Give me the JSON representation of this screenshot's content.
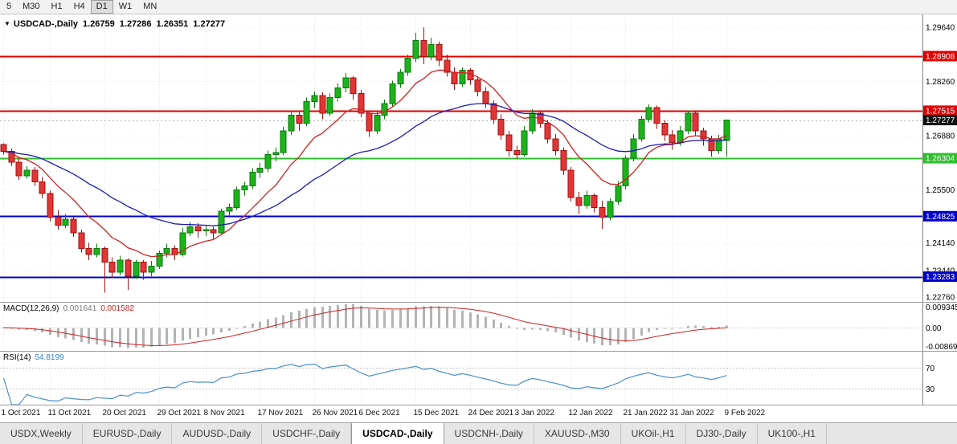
{
  "toolbar": {
    "timeframes": [
      "5",
      "M30",
      "H1",
      "H4",
      "D1",
      "W1",
      "MN"
    ],
    "active": "D1"
  },
  "chart_header": {
    "symbol_label": "USDCAD-,Daily",
    "open": "1.26759",
    "high": "1.27286",
    "low": "1.26351",
    "close": "1.27277"
  },
  "macd": {
    "label": "MACD(12,26,9)",
    "value_main": "0.001641",
    "value_signal": "0.001582",
    "axis": [
      "0.009345",
      "0.00",
      "-0.008690"
    ]
  },
  "rsi": {
    "label": "RSI(14)",
    "value": "54.8199",
    "axis": [
      "70",
      "30"
    ]
  },
  "price_axis": {
    "ticks": [
      {
        "label": "1.29640",
        "price": 1.2964
      },
      {
        "label": "1.28260",
        "price": 1.2826
      },
      {
        "label": "1.26880",
        "price": 1.2688
      },
      {
        "label": "1.25500",
        "price": 1.255
      },
      {
        "label": "1.24140",
        "price": 1.2414
      },
      {
        "label": "1.23440",
        "price": 1.2344
      },
      {
        "label": "1.22760",
        "price": 1.2276
      }
    ],
    "badges": [
      {
        "label": "1.28908",
        "price": 1.28908,
        "color": "#e00000"
      },
      {
        "label": "1.27515",
        "price": 1.27515,
        "color": "#e00000"
      },
      {
        "label": "1.27277",
        "price": 1.27277,
        "color": "#111111"
      },
      {
        "label": "1.26304",
        "price": 1.26304,
        "color": "#2fbe2f"
      },
      {
        "label": "1.24825",
        "price": 1.24825,
        "color": "#0000cc"
      },
      {
        "label": "1.23283",
        "price": 1.23283,
        "color": "#0000cc"
      }
    ]
  },
  "tabs": {
    "items": [
      "USDX,Weekly",
      "EURUSD-,Daily",
      "AUDUSD-,Daily",
      "USDCHF-,Daily",
      "USDCAD-,Daily",
      "USDCNH-,Daily",
      "XAUUSD-,M30",
      "UKOil-,H1",
      "DJ30-,Daily",
      "UK100-,H1"
    ],
    "active": "USDCAD-,Daily"
  },
  "colors": {
    "bull": "#1cb21c",
    "bull_border": "#0b7a0b",
    "bear": "#e23535",
    "bear_border": "#9c1212",
    "ma_fast": "#cc2222",
    "ma_slow": "#1c1cb0",
    "macd_hist": "#b4b4b4",
    "macd_signal": "#cc2222",
    "rsi_line": "#4a90c8",
    "grid": "#e3e3e3",
    "grid_h": "#f0f0f0",
    "level_dotted": "#c4c4c4",
    "bid_line": "#b0b0b0",
    "axis_border": "#808080"
  },
  "chart_data": {
    "type": "candlestick",
    "symbol": "USDCAD-",
    "timeframe": "Daily",
    "price_range": [
      1.2264,
      1.2997
    ],
    "current_price": 1.27277,
    "price_grid": [
      1.2964,
      1.28952,
      1.28264,
      1.27576,
      1.26888,
      1.262,
      1.25512,
      1.24824,
      1.24136,
      1.23448,
      1.2276
    ],
    "levels": [
      {
        "price": 1.28908,
        "color": "#e00000"
      },
      {
        "price": 1.27515,
        "color": "#e00000"
      },
      {
        "price": 1.26304,
        "color": "#2fbe2f"
      },
      {
        "price": 1.24825,
        "color": "#0000cc"
      },
      {
        "price": 1.23283,
        "color": "#0000cc"
      }
    ],
    "ma": [
      {
        "period": 10,
        "color_key": "ma_fast"
      },
      {
        "period": 30,
        "color_key": "ma_slow"
      }
    ],
    "macd": {
      "fast": 12,
      "slow": 26,
      "signal": 9,
      "range": [
        -0.00869,
        0.009345
      ]
    },
    "rsi": {
      "period": 14,
      "levels": [
        70,
        30
      ],
      "range": [
        0,
        100
      ]
    },
    "date_ticks": {
      "indices": [
        0,
        6,
        13,
        20,
        26,
        33,
        40,
        46,
        53,
        60,
        66,
        73,
        80,
        86,
        93
      ],
      "labels": [
        "1 Oct 2021",
        "11 Oct 2021",
        "20 Oct 2021",
        "29 Oct 2021",
        "8 Nov 2021",
        "17 Nov 2021",
        "26 Nov 2021",
        "6 Dec 2021",
        "15 Dec 2021",
        "24 Dec 2021",
        "3 Jan 2022",
        "12 Jan 2022",
        "21 Jan 2022",
        "31 Jan 2022",
        "9 Feb 2022"
      ]
    },
    "candles": [
      [
        1.2665,
        1.2668,
        1.264,
        1.2648
      ],
      [
        1.2648,
        1.2655,
        1.261,
        1.262
      ],
      [
        1.262,
        1.2632,
        1.2575,
        1.2585
      ],
      [
        1.2585,
        1.261,
        1.2578,
        1.26
      ],
      [
        1.26,
        1.2608,
        1.256,
        1.257
      ],
      [
        1.257,
        1.2582,
        1.2528,
        1.254
      ],
      [
        1.254,
        1.2548,
        1.247,
        1.248
      ],
      [
        1.248,
        1.2498,
        1.2448,
        1.246
      ],
      [
        1.246,
        1.2488,
        1.2452,
        1.2475
      ],
      [
        1.2475,
        1.248,
        1.243,
        1.244
      ],
      [
        1.244,
        1.2448,
        1.239,
        1.24
      ],
      [
        1.24,
        1.2415,
        1.237,
        1.2385
      ],
      [
        1.2385,
        1.2412,
        1.2378,
        1.24
      ],
      [
        1.24,
        1.2405,
        1.2288,
        1.2365
      ],
      [
        1.2365,
        1.2378,
        1.2325,
        1.234
      ],
      [
        1.234,
        1.2382,
        1.2332,
        1.237
      ],
      [
        1.237,
        1.2375,
        1.2295,
        1.233
      ],
      [
        1.233,
        1.2372,
        1.2322,
        1.2365
      ],
      [
        1.2365,
        1.237,
        1.232,
        1.234
      ],
      [
        1.234,
        1.2368,
        1.233,
        1.2355
      ],
      [
        1.2355,
        1.2395,
        1.2348,
        1.2388
      ],
      [
        1.2388,
        1.2412,
        1.2378,
        1.24
      ],
      [
        1.24,
        1.2408,
        1.237,
        1.2385
      ],
      [
        1.2385,
        1.2452,
        1.238,
        1.244
      ],
      [
        1.244,
        1.2468,
        1.2432,
        1.2455
      ],
      [
        1.2455,
        1.2465,
        1.2428,
        1.2445
      ],
      [
        1.2445,
        1.246,
        1.2432,
        1.2448
      ],
      [
        1.2448,
        1.2455,
        1.2425,
        1.244
      ],
      [
        1.244,
        1.2502,
        1.2435,
        1.2495
      ],
      [
        1.2495,
        1.2515,
        1.2482,
        1.2505
      ],
      [
        1.2505,
        1.2558,
        1.2498,
        1.255
      ],
      [
        1.255,
        1.257,
        1.2535,
        1.256
      ],
      [
        1.256,
        1.2605,
        1.2552,
        1.2595
      ],
      [
        1.2595,
        1.2618,
        1.258,
        1.2605
      ],
      [
        1.2605,
        1.265,
        1.2595,
        1.264
      ],
      [
        1.264,
        1.2658,
        1.2622,
        1.2645
      ],
      [
        1.2645,
        1.271,
        1.2638,
        1.27
      ],
      [
        1.27,
        1.275,
        1.269,
        1.274
      ],
      [
        1.274,
        1.2748,
        1.27,
        1.272
      ],
      [
        1.272,
        1.2785,
        1.2712,
        1.2775
      ],
      [
        1.2775,
        1.28,
        1.2758,
        1.279
      ],
      [
        1.279,
        1.2798,
        1.273,
        1.2745
      ],
      [
        1.2745,
        1.2795,
        1.2738,
        1.2785
      ],
      [
        1.2785,
        1.2822,
        1.2775,
        1.281
      ],
      [
        1.281,
        1.2848,
        1.2798,
        1.2835
      ],
      [
        1.2835,
        1.284,
        1.278,
        1.2795
      ],
      [
        1.2795,
        1.2805,
        1.2735,
        1.2745
      ],
      [
        1.2745,
        1.2752,
        1.2685,
        1.27
      ],
      [
        1.27,
        1.2748,
        1.2692,
        1.274
      ],
      [
        1.274,
        1.278,
        1.273,
        1.277
      ],
      [
        1.277,
        1.2828,
        1.2762,
        1.282
      ],
      [
        1.282,
        1.2858,
        1.281,
        1.285
      ],
      [
        1.285,
        1.2895,
        1.284,
        1.2885
      ],
      [
        1.2885,
        1.295,
        1.2875,
        1.293
      ],
      [
        1.293,
        1.2964,
        1.287,
        1.289
      ],
      [
        1.289,
        1.2938,
        1.288,
        1.292
      ],
      [
        1.292,
        1.2928,
        1.2865,
        1.288
      ],
      [
        1.288,
        1.2895,
        1.2838,
        1.285
      ],
      [
        1.285,
        1.2862,
        1.2805,
        1.282
      ],
      [
        1.282,
        1.2862,
        1.2812,
        1.2855
      ],
      [
        1.2855,
        1.286,
        1.2818,
        1.283
      ],
      [
        1.283,
        1.2838,
        1.2788,
        1.28
      ],
      [
        1.28,
        1.2812,
        1.2758,
        1.277
      ],
      [
        1.277,
        1.2778,
        1.2718,
        1.273
      ],
      [
        1.273,
        1.2742,
        1.2678,
        1.269
      ],
      [
        1.269,
        1.27,
        1.2635,
        1.265
      ],
      [
        1.265,
        1.2662,
        1.2628,
        1.264
      ],
      [
        1.264,
        1.2712,
        1.2635,
        1.27
      ],
      [
        1.27,
        1.2755,
        1.2692,
        1.2745
      ],
      [
        1.2745,
        1.2752,
        1.2708,
        1.272
      ],
      [
        1.272,
        1.2728,
        1.2668,
        1.268
      ],
      [
        1.268,
        1.2692,
        1.2638,
        1.265
      ],
      [
        1.265,
        1.2658,
        1.2588,
        1.26
      ],
      [
        1.26,
        1.2608,
        1.252,
        1.253
      ],
      [
        1.253,
        1.2545,
        1.2488,
        1.251
      ],
      [
        1.251,
        1.2548,
        1.2502,
        1.2535
      ],
      [
        1.2535,
        1.254,
        1.2492,
        1.2505
      ],
      [
        1.2505,
        1.2522,
        1.245,
        1.248
      ],
      [
        1.248,
        1.2528,
        1.2472,
        1.252
      ],
      [
        1.252,
        1.2572,
        1.2512,
        1.256
      ],
      [
        1.256,
        1.2638,
        1.2552,
        1.263
      ],
      [
        1.263,
        1.2692,
        1.2622,
        1.268
      ],
      [
        1.268,
        1.2738,
        1.2672,
        1.273
      ],
      [
        1.273,
        1.2768,
        1.2722,
        1.276
      ],
      [
        1.276,
        1.2765,
        1.2705,
        1.272
      ],
      [
        1.272,
        1.2728,
        1.2675,
        1.269
      ],
      [
        1.269,
        1.2702,
        1.2652,
        1.267
      ],
      [
        1.267,
        1.2712,
        1.2662,
        1.27
      ],
      [
        1.27,
        1.2752,
        1.2692,
        1.2745
      ],
      [
        1.2745,
        1.275,
        1.2688,
        1.27
      ],
      [
        1.27,
        1.2708,
        1.2662,
        1.268
      ],
      [
        1.268,
        1.2688,
        1.2635,
        1.265
      ],
      [
        1.265,
        1.269,
        1.2642,
        1.268
      ],
      [
        1.26759,
        1.27286,
        1.26351,
        1.27277
      ]
    ]
  }
}
